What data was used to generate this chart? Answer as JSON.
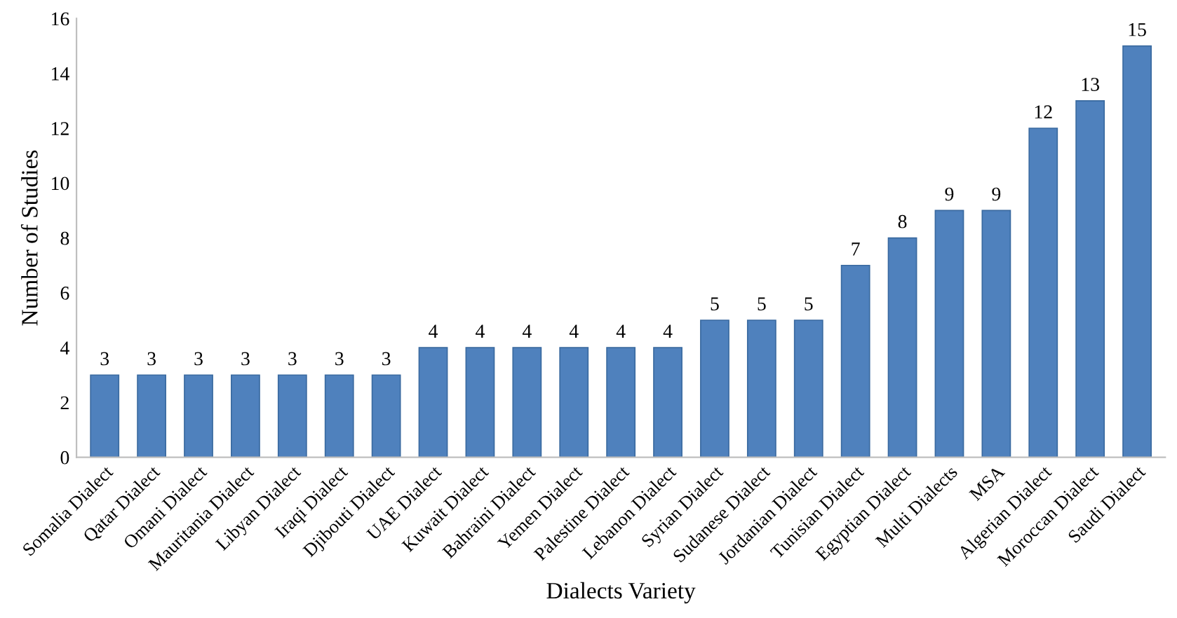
{
  "chart_data": {
    "type": "bar",
    "xlabel": "Dialects Variety",
    "ylabel": "Number of Studies",
    "categories": [
      "Somalia Dialect",
      "Qatar Dialect",
      "Omani Dialect",
      "Mauritania Dialect",
      "Libyan Dialect",
      "Iraqi Dialect",
      "Djibouti Dialect",
      "UAE Dialect",
      "Kuwait Dialect",
      "Bahraini Dialect",
      "Yemen Dialect",
      "Palestine Dialect",
      "Lebanon Dialect",
      "Syrian Dialect",
      "Sudanese Dialect",
      "Jordanian Dialect",
      "Tunisian Dialect",
      "Egyptian Dialect",
      "Multi Dialects",
      "MSA",
      "Algerian Dialect",
      "Moroccan Dialect",
      "Saudi Dialect"
    ],
    "values": [
      3,
      3,
      3,
      3,
      3,
      3,
      3,
      4,
      4,
      4,
      4,
      4,
      4,
      5,
      5,
      5,
      7,
      8,
      9,
      9,
      12,
      13,
      15
    ],
    "color": "#4f81bd",
    "ylim": [
      0,
      16
    ],
    "yticks": [
      0,
      2,
      4,
      6,
      8,
      10,
      12,
      14,
      16
    ],
    "grid": false,
    "data_labels": true
  }
}
